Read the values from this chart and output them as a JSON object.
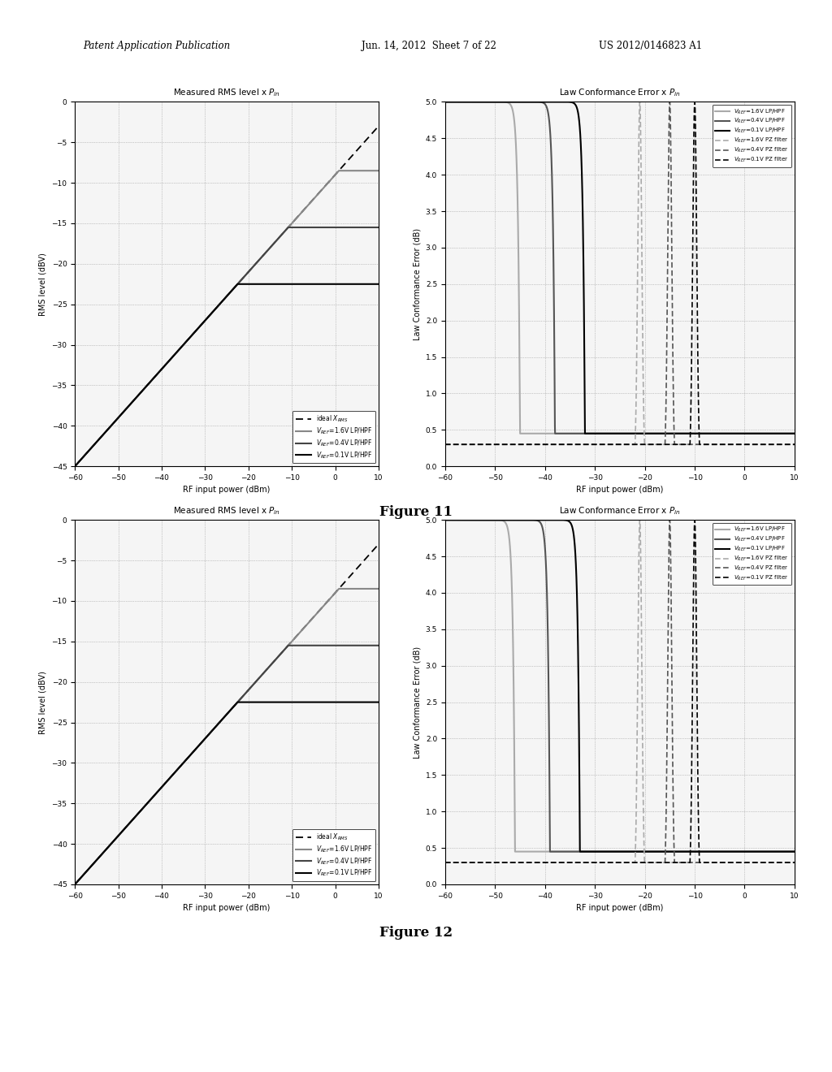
{
  "fig_width": 10.24,
  "fig_height": 13.2,
  "dpi": 100,
  "bg_color": "#ffffff",
  "header_left": "Patent Application Publication",
  "header_mid": "Jun. 14, 2012  Sheet 7 of 22",
  "header_right": "US 2012/0146823 A1",
  "figure11_label": "Figure 11",
  "figure12_label": "Figure 12",
  "rms_plots": [
    {
      "title": "Measured RMS level x P_in",
      "xlabel": "RF input power (dBm)",
      "ylabel": "RMS level (dBV)",
      "xlim": [
        -60,
        10
      ],
      "ylim": [
        -45,
        0
      ],
      "xticks": [
        -60,
        -50,
        -40,
        -30,
        -20,
        -10,
        0,
        10
      ],
      "yticks": [
        0,
        -5,
        -10,
        -15,
        -20,
        -25,
        -30,
        -35,
        -40,
        -45
      ],
      "ideal_slope": 0.6,
      "ideal_intercept": -9,
      "curves": [
        {
          "sat_level": -8.5,
          "onset": -22,
          "color": "#888888",
          "lw": 1.5,
          "label": "V_REF=1.6V LP/HPF"
        },
        {
          "sat_level": -15.5,
          "onset": -30,
          "color": "#444444",
          "lw": 1.5,
          "label": "V_REF=0.4V LP/HPF"
        },
        {
          "sat_level": -22.5,
          "onset": -37,
          "color": "#000000",
          "lw": 1.5,
          "label": "V_REF=0.1V LP/HPF"
        }
      ]
    },
    {
      "title": "Measured RMS level x P_in",
      "xlabel": "RF input power (dBm)",
      "ylabel": "RMS level (dBV)",
      "xlim": [
        -60,
        10
      ],
      "ylim": [
        -45,
        0
      ],
      "xticks": [
        -60,
        -50,
        -40,
        -30,
        -20,
        -10,
        0,
        10
      ],
      "yticks": [
        0,
        -5,
        -10,
        -15,
        -20,
        -25,
        -30,
        -35,
        -40,
        -45
      ],
      "ideal_slope": 0.6,
      "ideal_intercept": -9,
      "curves": [
        {
          "sat_level": -8.5,
          "onset": -22,
          "color": "#888888",
          "lw": 1.5,
          "label": "V_REF=1.6V LP/HPF"
        },
        {
          "sat_level": -15.5,
          "onset": -30,
          "color": "#444444",
          "lw": 1.5,
          "label": "V_REF=0.4V LP/HPF"
        },
        {
          "sat_level": -22.5,
          "onset": -37,
          "color": "#000000",
          "lw": 1.5,
          "label": "V_REF=0.1V LP/HPF"
        }
      ]
    }
  ],
  "error_plots": [
    {
      "title": "Law Conformance Error x P_in",
      "xlabel": "RF input power (dBm)",
      "ylabel": "Law Conformance Error (dB)",
      "xlim": [
        -60,
        10
      ],
      "ylim": [
        0,
        5
      ],
      "xticks": [
        -60,
        -50,
        -40,
        -30,
        -20,
        -10,
        0,
        10
      ],
      "yticks": [
        0,
        0.5,
        1,
        1.5,
        2,
        2.5,
        3,
        3.5,
        4,
        4.5,
        5
      ],
      "lphpf_curves": [
        {
          "spike_x": -45,
          "color": "#aaaaaa",
          "lw": 1.5,
          "floor": 0.45,
          "label": "V_REF=1.6V LP/HPF"
        },
        {
          "spike_x": -38,
          "color": "#555555",
          "lw": 1.5,
          "floor": 0.45,
          "label": "V_REF=0.4V LP/HPF"
        },
        {
          "spike_x": -32,
          "color": "#000000",
          "lw": 1.5,
          "floor": 0.45,
          "label": "V_REF=0.1V LP/HPF"
        }
      ],
      "pz_curves": [
        {
          "spike_x": -21,
          "color": "#aaaaaa",
          "lw": 1.2,
          "floor": 0.3,
          "label": "V_REF=1.6V PZ filter"
        },
        {
          "spike_x": -15,
          "color": "#555555",
          "lw": 1.2,
          "floor": 0.3,
          "label": "V_REF=0.4V PZ filter"
        },
        {
          "spike_x": -10,
          "color": "#000000",
          "lw": 1.2,
          "floor": 0.3,
          "label": "V_REF=0.1V PZ filter"
        }
      ]
    },
    {
      "title": "Law Conformance Error x P_in",
      "xlabel": "RF input power (dBm)",
      "ylabel": "Law Conformance Error (dB)",
      "xlim": [
        -60,
        10
      ],
      "ylim": [
        0,
        5
      ],
      "xticks": [
        -60,
        -50,
        -40,
        -30,
        -20,
        -10,
        0,
        10
      ],
      "yticks": [
        0,
        0.5,
        1,
        1.5,
        2,
        2.5,
        3,
        3.5,
        4,
        4.5,
        5
      ],
      "lphpf_curves": [
        {
          "spike_x": -46,
          "color": "#aaaaaa",
          "lw": 1.5,
          "floor": 0.45,
          "label": "V_REF=1.6V LP/HPF"
        },
        {
          "spike_x": -39,
          "color": "#555555",
          "lw": 1.5,
          "floor": 0.45,
          "label": "V_REF=0.4V LP/HPF"
        },
        {
          "spike_x": -33,
          "color": "#000000",
          "lw": 1.5,
          "floor": 0.45,
          "label": "V_REF=0.1V LP/HPF"
        }
      ],
      "pz_curves": [
        {
          "spike_x": -21,
          "color": "#aaaaaa",
          "lw": 1.2,
          "floor": 0.3,
          "label": "V_REF=1.6V PZ filter"
        },
        {
          "spike_x": -15,
          "color": "#555555",
          "lw": 1.2,
          "floor": 0.3,
          "label": "V_REF=0.4V PZ filter"
        },
        {
          "spike_x": -10,
          "color": "#000000",
          "lw": 1.2,
          "floor": 0.3,
          "label": "V_REF=0.1V PZ filter"
        }
      ]
    }
  ]
}
